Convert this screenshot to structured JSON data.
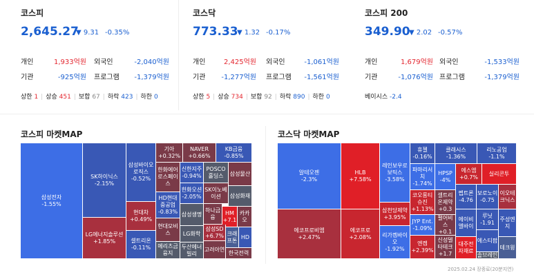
{
  "kospi": {
    "name": "코스피",
    "value": "2,645.27",
    "change": "▼ 9.31",
    "pct": "-0.35%",
    "individual_label": "개인",
    "individual": "1,933억원",
    "foreign_label": "외국인",
    "foreign": "-2,040억원",
    "institution_label": "기관",
    "institution": "-925억원",
    "program_label": "프로그램",
    "program": "-1,379억원",
    "breadth": {
      "upper_label": "상한",
      "upper": "1",
      "up_label": "상승",
      "up": "451",
      "flat_label": "보합",
      "flat": "67",
      "down_label": "하락",
      "down": "423",
      "lower_label": "하한",
      "lower": "0"
    }
  },
  "kosdaq": {
    "name": "코스닥",
    "value": "773.33",
    "change": "▼ 1.32",
    "pct": "-0.17%",
    "individual_label": "개인",
    "individual": "2,425억원",
    "foreign_label": "외국인",
    "foreign": "-1,061억원",
    "institution_label": "기관",
    "institution": "-1,277억원",
    "program_label": "프로그램",
    "program": "-1,561억원",
    "breadth": {
      "upper_label": "상한",
      "upper": "5",
      "up_label": "상승",
      "up": "734",
      "flat_label": "보합",
      "flat": "92",
      "down_label": "하락",
      "down": "890",
      "lower_label": "하한",
      "lower": "0"
    }
  },
  "kospi200": {
    "name": "코스피 200",
    "value": "349.90",
    "change": "▼ 2.02",
    "pct": "-0.57%",
    "individual_label": "개인",
    "individual": "1,679억원",
    "foreign_label": "외국인",
    "foreign": "-1,533억원",
    "institution_label": "기관",
    "institution": "-1,076억원",
    "program_label": "프로그램",
    "program": "-1,379억원",
    "basis_label": "베이시스",
    "basis": "-2.4"
  },
  "kospi_map": {
    "title": "코스피 마켓MAP",
    "cells": [
      {
        "name": "삼성전자",
        "pct": "-1.55%"
      },
      {
        "name": "SK하이닉스",
        "pct": "-2.15%"
      },
      {
        "name": "LG에너지솔루션",
        "pct": "+1.85%"
      },
      {
        "name": "삼성바이오로직스",
        "pct": "-0.52%"
      },
      {
        "name": "현대차",
        "pct": "+0.49%"
      },
      {
        "name": "셀트리온",
        "pct": "-0.11%"
      },
      {
        "name": "기아",
        "pct": "+0.32%"
      },
      {
        "name": "NAVER",
        "pct": "+0.66%"
      },
      {
        "name": "KB금융",
        "pct": "-0.85%"
      },
      {
        "name": "한화에어로스페이스",
        "pct": ""
      },
      {
        "name": "신한지주",
        "pct": "-0.94%"
      },
      {
        "name": "POSCO홀딩스",
        "pct": ""
      },
      {
        "name": "삼성물산",
        "pct": ""
      },
      {
        "name": "HD현대중공업",
        "pct": "-0.83%"
      },
      {
        "name": "한화오션",
        "pct": "-2.05%"
      },
      {
        "name": "SK이노베이션",
        "pct": ""
      },
      {
        "name": "삼성화재",
        "pct": ""
      },
      {
        "name": "현대모비스",
        "pct": ""
      },
      {
        "name": "삼성생명",
        "pct": ""
      },
      {
        "name": "하나금융",
        "pct": ""
      },
      {
        "name": "HM",
        "pct": "+7.1"
      },
      {
        "name": "카카오",
        "pct": ""
      },
      {
        "name": "LG화학",
        "pct": ""
      },
      {
        "name": "삼성SD",
        "pct": "+6.7%"
      },
      {
        "name": "크래프톤",
        "pct": ""
      },
      {
        "name": "HD",
        "pct": ""
      },
      {
        "name": "메리츠금융지",
        "pct": ""
      },
      {
        "name": "두산에너빌리",
        "pct": ""
      },
      {
        "name": "고려아연",
        "pct": ""
      },
      {
        "name": "한국전력",
        "pct": ""
      }
    ]
  },
  "kosdaq_map": {
    "title": "코스닥 마켓MAP",
    "cells": [
      {
        "name": "알테오젠",
        "pct": "-2.3%"
      },
      {
        "name": "에코프로비엠",
        "pct": "+2.47%"
      },
      {
        "name": "HLB",
        "pct": "+7.58%"
      },
      {
        "name": "에코프로",
        "pct": "+2.08%"
      },
      {
        "name": "레인보우로보틱스",
        "pct": "-3.58%"
      },
      {
        "name": "삼천당제약",
        "pct": "+3.95%"
      },
      {
        "name": "리가켐바이오",
        "pct": "-1.92%"
      },
      {
        "name": "휴젤",
        "pct": "-0.16%"
      },
      {
        "name": "클래시스",
        "pct": "-1.36%"
      },
      {
        "name": "리노공업",
        "pct": "-1.1%"
      },
      {
        "name": "파마리서치",
        "pct": "-1.74%"
      },
      {
        "name": "HPSP",
        "pct": "-4%"
      },
      {
        "name": "에스엠",
        "pct": "+0.7%"
      },
      {
        "name": "실리콘투",
        "pct": ""
      },
      {
        "name": "코오롱티슈진",
        "pct": "+1.13%"
      },
      {
        "name": "셀트리온제약",
        "pct": "+0.3"
      },
      {
        "name": "펩트론",
        "pct": "-4.76"
      },
      {
        "name": "보로노이",
        "pct": "-0.75"
      },
      {
        "name": "이오테크닉스",
        "pct": ""
      },
      {
        "name": "JYP Ent.",
        "pct": "-1.09%"
      },
      {
        "name": "펄어비스",
        "pct": "+0.1"
      },
      {
        "name": "에이비엘바이",
        "pct": ""
      },
      {
        "name": "루닛",
        "pct": "-1.91"
      },
      {
        "name": "주성엔지",
        "pct": ""
      },
      {
        "name": "엔켐",
        "pct": "+2.39%"
      },
      {
        "name": "신성델타테크",
        "pct": "+1.7"
      },
      {
        "name": "대주전자재료",
        "pct": ""
      },
      {
        "name": "에스티팜",
        "pct": ""
      },
      {
        "name": "테크윙",
        "pct": ""
      },
      {
        "name": "솔브레인",
        "pct": ""
      }
    ]
  },
  "footnote": "2025.02.24 장종료(20분지연)"
}
